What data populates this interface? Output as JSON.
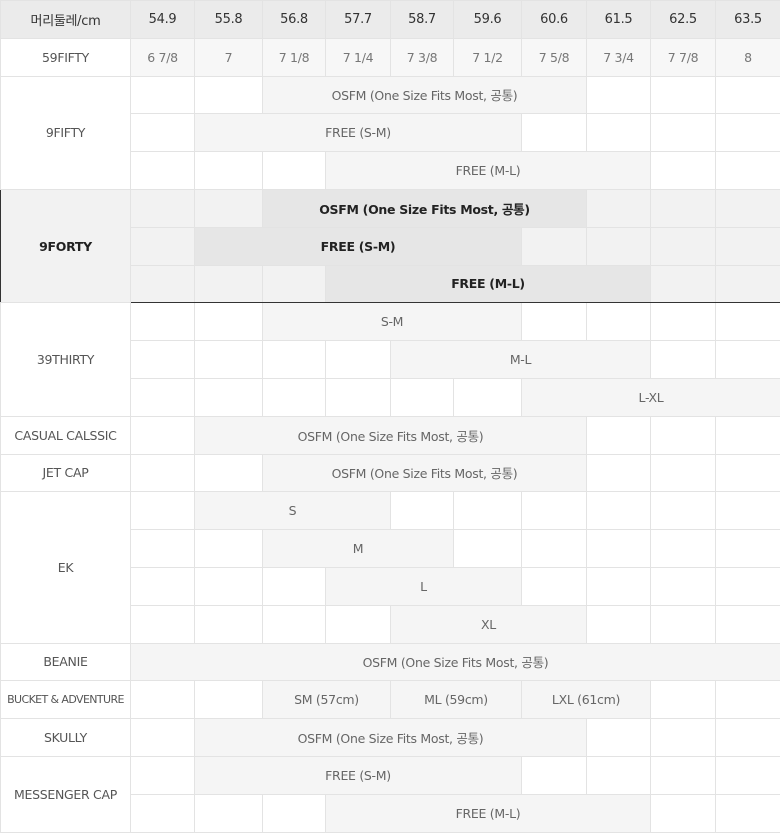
{
  "header": {
    "label": "머리둘레/cm",
    "sizes_cm": [
      "54.9",
      "55.8",
      "56.8",
      "57.7",
      "58.7",
      "59.6",
      "60.6",
      "61.5",
      "62.5",
      "63.5"
    ]
  },
  "hat_size_row": {
    "label": "59FIFTY",
    "values": [
      "6 7/8",
      "7",
      "7 1/8",
      "7 1/4",
      "7 3/8",
      "7 1/2",
      "7 5/8",
      "7 3/4",
      "7 7/8",
      "8"
    ]
  },
  "highlighted_model": "9FORTY",
  "models": [
    {
      "label": "9FIFTY",
      "rows": [
        {
          "text": "OSFM (One Size Fits Most, 공통)",
          "from": "56.8",
          "to": "60.6"
        },
        {
          "text": "FREE (S-M)",
          "from": "55.8",
          "to": "59.6"
        },
        {
          "text": "FREE (M-L)",
          "from": "57.7",
          "to": "61.5"
        }
      ]
    },
    {
      "label": "9FORTY",
      "rows": [
        {
          "text": "OSFM (One Size Fits Most, 공통)",
          "from": "56.8",
          "to": "60.6"
        },
        {
          "text": "FREE (S-M)",
          "from": "55.8",
          "to": "59.6"
        },
        {
          "text": "FREE (M-L)",
          "from": "57.7",
          "to": "61.5"
        }
      ]
    },
    {
      "label": "39THIRTY",
      "rows": [
        {
          "text": "S-M",
          "from": "56.8",
          "to": "59.6"
        },
        {
          "text": "M-L",
          "from": "58.7",
          "to": "61.5"
        },
        {
          "text": "L-XL",
          "from": "60.6",
          "to": "63.5"
        }
      ]
    },
    {
      "label": "CASUAL CALSSIC",
      "rows": [
        {
          "text": "OSFM (One Size Fits Most, 공통)",
          "from": "55.8",
          "to": "60.6"
        }
      ]
    },
    {
      "label": "JET CAP",
      "rows": [
        {
          "text": "OSFM (One Size Fits Most, 공통)",
          "from": "56.8",
          "to": "60.6"
        }
      ]
    },
    {
      "label": "EK",
      "rows": [
        {
          "text": "S",
          "from": "55.8",
          "to": "57.7"
        },
        {
          "text": "M",
          "from": "56.8",
          "to": "58.7"
        },
        {
          "text": "L",
          "from": "57.7",
          "to": "59.6"
        },
        {
          "text": "XL",
          "from": "58.7",
          "to": "60.6"
        }
      ]
    },
    {
      "label": "BEANIE",
      "rows": [
        {
          "text": "OSFM (One Size Fits Most, 공통)",
          "from": "54.9",
          "to": "63.5"
        }
      ]
    },
    {
      "label": "BUCKET & ADVENTURE",
      "small": true,
      "rows": [
        {
          "segments": [
            {
              "text": "SM (57cm)",
              "from": "56.8",
              "to": "57.7"
            },
            {
              "text": "ML (59cm)",
              "from": "58.7",
              "to": "59.6"
            },
            {
              "text": "LXL (61cm)",
              "from": "60.6",
              "to": "61.5"
            }
          ]
        }
      ]
    },
    {
      "label": "SKULLY",
      "rows": [
        {
          "text": "OSFM (One Size Fits Most, 공통)",
          "from": "55.8",
          "to": "60.6"
        }
      ]
    },
    {
      "label": "MESSENGER CAP",
      "rows": [
        {
          "text": "FREE (S-M)",
          "from": "55.8",
          "to": "59.6"
        },
        {
          "text": "FREE (M-L)",
          "from": "57.7",
          "to": "61.5"
        }
      ]
    }
  ]
}
